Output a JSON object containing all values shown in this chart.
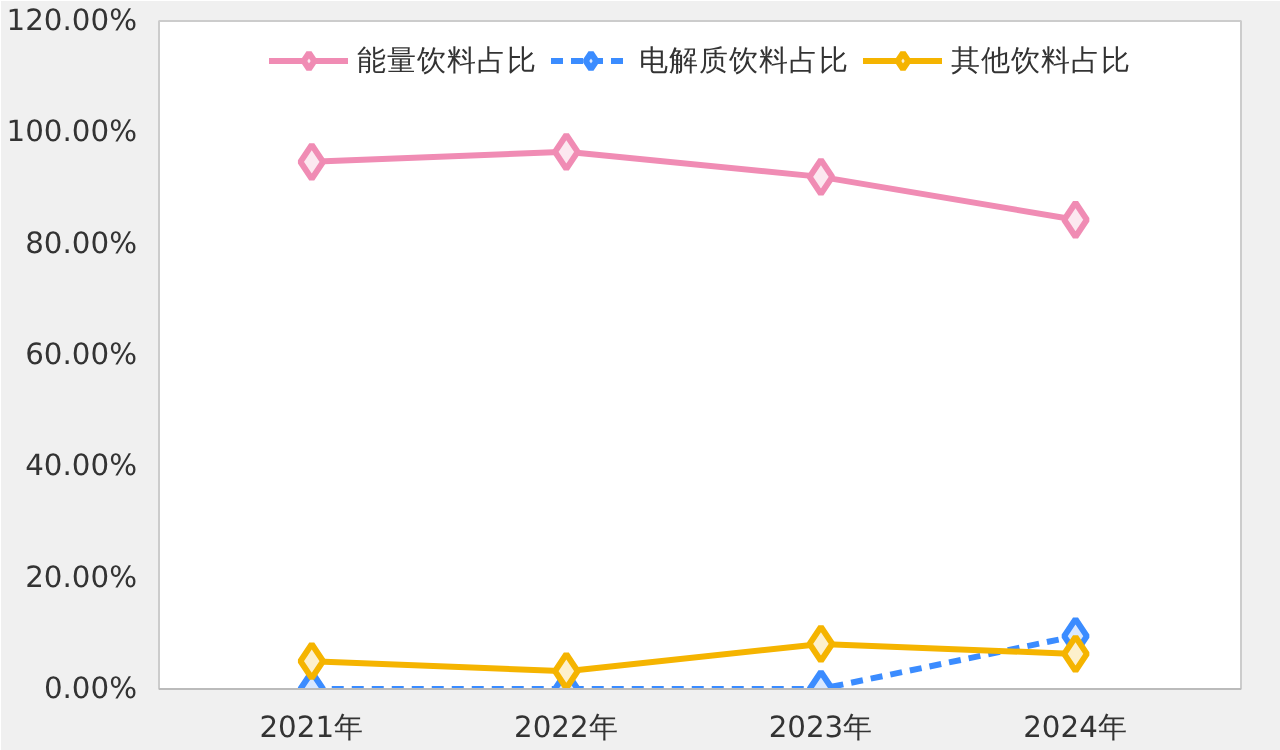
{
  "chart_data": {
    "type": "line",
    "categories": [
      "2021年",
      "2022年",
      "2023年",
      "2024年"
    ],
    "series": [
      {
        "name": "能量饮料占比",
        "color": "#f08cb4",
        "values": [
          94.7,
          96.5,
          92.0,
          84.3
        ],
        "line_style": "solid"
      },
      {
        "name": "电解质饮料占比",
        "color": "#3b8cff",
        "values": [
          0,
          0,
          0,
          9.5
        ],
        "line_style": "dashed"
      },
      {
        "name": "其他饮料占比",
        "color": "#f5b400",
        "values": [
          5.0,
          3.2,
          8.1,
          6.3
        ],
        "line_style": "solid"
      }
    ],
    "ylim": [
      0,
      120
    ],
    "yticks": [
      {
        "value": 0,
        "label": "0.00%"
      },
      {
        "value": 20,
        "label": "20.00%"
      },
      {
        "value": 40,
        "label": "40.00%"
      },
      {
        "value": 60,
        "label": "60.00%"
      },
      {
        "value": 80,
        "label": "80.00%"
      },
      {
        "value": 100,
        "label": "100.00%"
      },
      {
        "value": 120,
        "label": "120.00%"
      }
    ],
    "marker": "diamond",
    "grid": false,
    "legend": "top"
  }
}
